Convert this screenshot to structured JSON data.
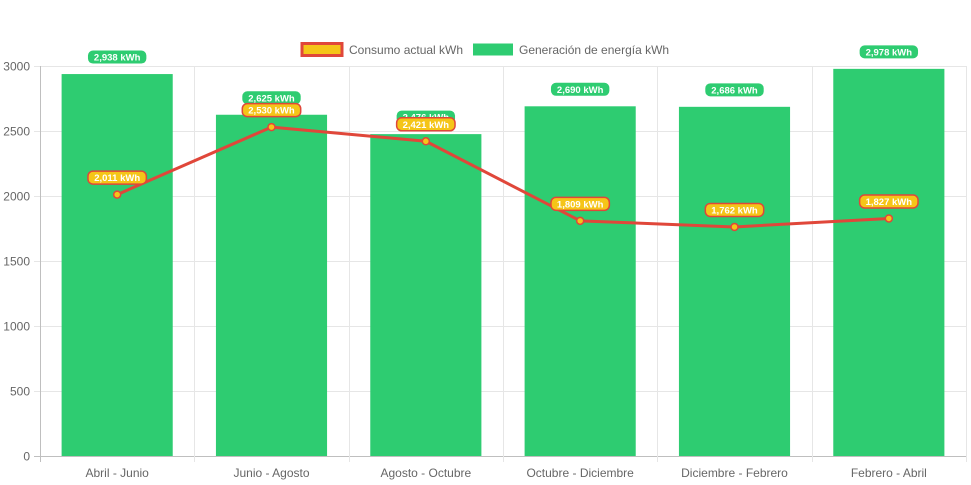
{
  "chart_data": {
    "type": "bar",
    "title": "",
    "xlabel": "",
    "ylabel": "",
    "ylim": [
      0,
      3000
    ],
    "y_ticks": [
      0,
      500,
      1000,
      1500,
      2000,
      2500,
      3000
    ],
    "grid": true,
    "legend_position": "top-center",
    "categories": [
      "Abril - Junio",
      "Junio - Agosto",
      "Agosto - Octubre",
      "Octubre - Diciembre",
      "Diciembre - Febrero",
      "Febrero - Abril"
    ],
    "series": [
      {
        "name": "Consumo actual kWh",
        "type": "line",
        "values": [
          2011,
          2530,
          2421,
          1809,
          1762,
          1827
        ],
        "labels": [
          "2,011 kWh",
          "2,530 kWh",
          "2,421 kWh",
          "1,809 kWh",
          "1,762 kWh",
          "1,827 kWh"
        ],
        "line_color": "#e0473a",
        "fill_color": "#f5c518"
      },
      {
        "name": "Generación de energía kWh",
        "type": "bar",
        "values": [
          2938,
          2625,
          2476,
          2690,
          2686,
          2978
        ],
        "labels": [
          "2,938 kWh",
          "2,625 kWh",
          "2,476 kWh",
          "2,690 kWh",
          "2,686 kWh",
          "2,978 kWh"
        ],
        "color": "#2ecc71"
      }
    ]
  }
}
